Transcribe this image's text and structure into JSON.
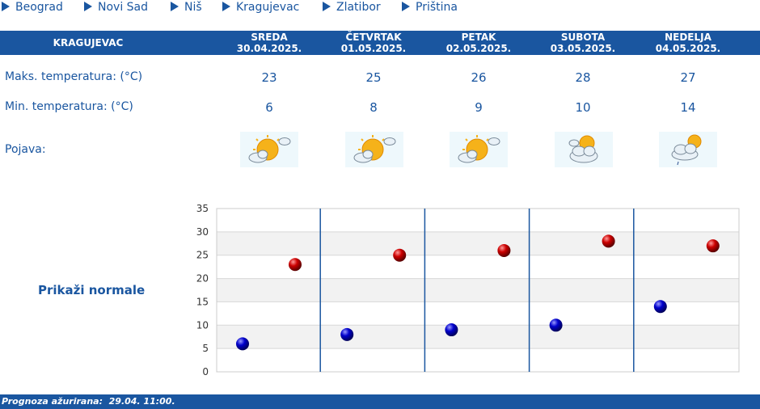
{
  "nav": [
    "Beograd",
    "Novi Sad",
    "Niš",
    "Kragujevac",
    "Zlatibor",
    "Priština"
  ],
  "city": "KRAGUJEVAC",
  "days": [
    {
      "name": "SREDA",
      "date": "30.04.2025.",
      "max": "23",
      "min": "6",
      "icon": "sun-cloud-icon"
    },
    {
      "name": "ČETVRTAK",
      "date": "01.05.2025.",
      "max": "25",
      "min": "8",
      "icon": "sun-cloud-icon"
    },
    {
      "name": "PETAK",
      "date": "02.05.2025.",
      "max": "26",
      "min": "9",
      "icon": "sun-cloud-icon"
    },
    {
      "name": "SUBOTA",
      "date": "03.05.2025.",
      "max": "28",
      "min": "10",
      "icon": "cloud-sun-icon"
    },
    {
      "name": "NEDELJA",
      "date": "04.05.2025.",
      "max": "27",
      "min": "14",
      "icon": "cloud-sun-rain-icon"
    }
  ],
  "labels": {
    "max": "Maks. temperatura: (°C)",
    "min": "Min. temperatura: (°C)",
    "phenomenon": "Pojava:"
  },
  "normals_label": "Prikaži normale",
  "footer": "Prognoza ažurirana:  29.04. 11:00.",
  "colors": {
    "brand": "#1a56a0",
    "max_dot": "#cc0000",
    "min_dot": "#0000cc"
  },
  "chart_data": {
    "type": "scatter",
    "categories": [
      "30.04.2025.",
      "01.05.2025.",
      "02.05.2025.",
      "03.05.2025.",
      "04.05.2025."
    ],
    "series": [
      {
        "values": [
          23,
          25,
          26,
          28,
          27
        ]
      },
      {
        "values": [
          6,
          8,
          9,
          10,
          14
        ]
      }
    ],
    "yticks": [
      0,
      5,
      10,
      15,
      20,
      25,
      30,
      35
    ],
    "ylim": [
      0,
      35
    ],
    "grid": true
  }
}
